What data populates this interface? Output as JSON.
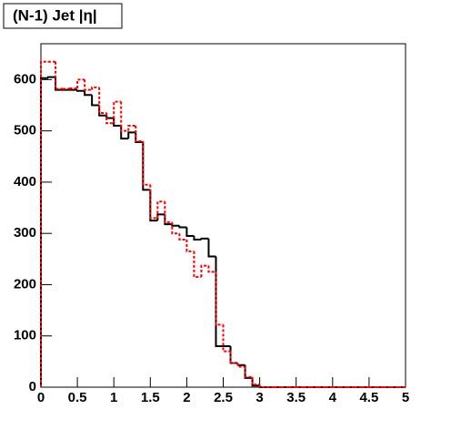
{
  "chart_data": {
    "type": "histogram",
    "title": "(N-1) Jet |η|",
    "bins": [
      0,
      0.1,
      0.2,
      0.3,
      0.4,
      0.5,
      0.6,
      0.7,
      0.8,
      0.9,
      1.0,
      1.1,
      1.2,
      1.3,
      1.4,
      1.5,
      1.6,
      1.7,
      1.8,
      1.9,
      2.0,
      2.1,
      2.2,
      2.3,
      2.4,
      2.5,
      2.6,
      2.7,
      2.8,
      2.9,
      3.0,
      3.1,
      3.2,
      3.3,
      3.4,
      3.5,
      3.6,
      3.7,
      3.8,
      3.9,
      4.0,
      4.1,
      4.2,
      4.3,
      4.4,
      4.5,
      4.6,
      4.7,
      4.8,
      4.9,
      5.0
    ],
    "series": [
      {
        "color": "#000000",
        "dash": false,
        "values": [
          603,
          605,
          580,
          580,
          580,
          578,
          570,
          550,
          530,
          525,
          510,
          485,
          497,
          478,
          385,
          325,
          337,
          318,
          315,
          312,
          295,
          288,
          290,
          255,
          80,
          80,
          47,
          43,
          18,
          3,
          0,
          0,
          0,
          0,
          0,
          0,
          0,
          0,
          0,
          0,
          0,
          0,
          0,
          0,
          0,
          0,
          0,
          0,
          0,
          0
        ]
      },
      {
        "color": "#ff0000",
        "dash": true,
        "values": [
          635,
          635,
          582,
          582,
          583,
          600,
          580,
          585,
          535,
          515,
          557,
          500,
          510,
          480,
          395,
          330,
          362,
          322,
          300,
          288,
          265,
          215,
          237,
          225,
          122,
          70,
          47,
          40,
          20,
          5,
          0,
          0,
          0,
          0,
          0,
          0,
          0,
          0,
          0,
          0,
          0,
          0,
          0,
          0,
          0,
          0,
          0,
          0,
          0,
          0
        ]
      }
    ],
    "xlim": [
      0,
      5
    ],
    "xticks": [
      0,
      0.5,
      1,
      1.5,
      2,
      2.5,
      3,
      3.5,
      4,
      4.5,
      5
    ],
    "ylim": [
      0,
      670
    ],
    "yticks": [
      0,
      100,
      200,
      300,
      400,
      500,
      600
    ]
  }
}
